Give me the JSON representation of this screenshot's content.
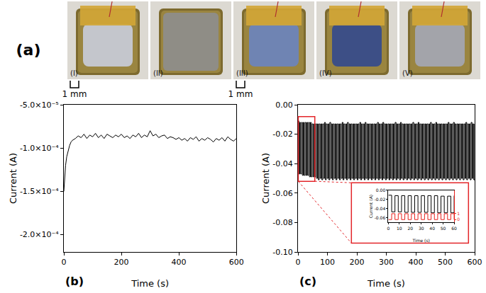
{
  "photos": {
    "label": "(a)",
    "items": [
      "(I)",
      "(II)",
      "(III)",
      "(IV)",
      "(V)"
    ],
    "scale_bar": "1 mm",
    "scale_bar_on": [
      "(I)",
      "(III)"
    ]
  },
  "chart_data": [
    {
      "label": "(b)",
      "type": "line",
      "line_style": "solid",
      "color": "#000000",
      "grid": false,
      "xlabel": "Time (s)",
      "ylabel": "Current (A)",
      "xlim": [
        0,
        600
      ],
      "xticks": [
        0,
        200,
        400,
        600
      ],
      "ylim": [
        -0.00022,
        -5e-05
      ],
      "yticks": [
        {
          "value": -0.0002,
          "label": "-2.0×10⁻⁴"
        },
        {
          "value": -0.00015,
          "label": "-1.5×10⁻⁴"
        },
        {
          "value": -0.0001,
          "label": "-1.0×10⁻⁴"
        },
        {
          "value": -5e-05,
          "label": "-5.0×10⁻⁵"
        }
      ],
      "x": [
        0,
        3,
        6,
        10,
        15,
        20,
        25,
        30,
        40,
        50,
        60,
        70,
        80,
        90,
        100,
        110,
        120,
        130,
        140,
        150,
        160,
        170,
        180,
        190,
        200,
        210,
        220,
        230,
        240,
        250,
        260,
        270,
        280,
        290,
        300,
        310,
        320,
        330,
        340,
        350,
        360,
        370,
        380,
        390,
        400,
        410,
        420,
        430,
        440,
        450,
        460,
        470,
        480,
        490,
        500,
        510,
        520,
        530,
        540,
        550,
        560,
        570,
        580,
        590,
        600
      ],
      "values": [
        -0.00015,
        -0.000132,
        -0.00012,
        -0.00011,
        -0.000102,
        -9.7e-05,
        -9.3e-05,
        -9.1e-05,
        -8.9e-05,
        -8.6e-05,
        -8.8e-05,
        -8.4e-05,
        -8.9e-05,
        -8.5e-05,
        -8.7e-05,
        -8.3e-05,
        -8.8e-05,
        -8.5e-05,
        -8.9e-05,
        -8.4e-05,
        -8.6e-05,
        -8.8e-05,
        -8.5e-05,
        -8.7e-05,
        -8.4e-05,
        -8.8e-05,
        -8.6e-05,
        -8.9e-05,
        -8.5e-05,
        -8.7e-05,
        -8.3e-05,
        -8.8e-05,
        -8.5e-05,
        -8.7e-05,
        -8e-05,
        -8.6e-05,
        -8.4e-05,
        -8.8e-05,
        -8.6e-05,
        -8.5e-05,
        -8.9e-05,
        -8.7e-05,
        -8.8e-05,
        -9e-05,
        -8.8e-05,
        -9.1e-05,
        -8.9e-05,
        -9.2e-05,
        -8.8e-05,
        -9e-05,
        -8.7e-05,
        -9.2e-05,
        -8.9e-05,
        -9.1e-05,
        -8.8e-05,
        -9e-05,
        -9.3e-05,
        -8.9e-05,
        -9.1e-05,
        -8.8e-05,
        -9.2e-05,
        -8.7e-05,
        -9e-05,
        -9.2e-05,
        -8.9e-05
      ]
    },
    {
      "label": "(c)",
      "type": "line",
      "line_style": "step",
      "color": "#000000",
      "grid": false,
      "xlabel": "Time (s)",
      "ylabel": "Current (A)",
      "xlim": [
        0,
        600
      ],
      "xticks": [
        0,
        100,
        200,
        300,
        400,
        500,
        600
      ],
      "ylim": [
        -0.1,
        0
      ],
      "yticks": [
        {
          "value": -0.1,
          "label": "-0.10"
        },
        -0.08,
        -0.06,
        -0.04,
        -0.02,
        {
          "value": 0,
          "label": "0.00"
        }
      ],
      "x": [
        0,
        3,
        6,
        9,
        12,
        15,
        18,
        21,
        24,
        27,
        30,
        33,
        36,
        39,
        42,
        45,
        48,
        51,
        54,
        57,
        60,
        63,
        66,
        69,
        72,
        75,
        78,
        81,
        84,
        87,
        90,
        93,
        96,
        99,
        102,
        105,
        108,
        111,
        114,
        117,
        120,
        123,
        126,
        129,
        132,
        135,
        138,
        141,
        144,
        147,
        150,
        153,
        156,
        159,
        162,
        165,
        168,
        171,
        174,
        177,
        180,
        183,
        186,
        189,
        192,
        195,
        198,
        201,
        204,
        207,
        210,
        213,
        216,
        219,
        222,
        225,
        228,
        231,
        234,
        237,
        240,
        243,
        246,
        249,
        252,
        255,
        258,
        261,
        264,
        267,
        270,
        273,
        276,
        279,
        282,
        285,
        288,
        291,
        294,
        297,
        300,
        303,
        306,
        309,
        312,
        315,
        318,
        321,
        324,
        327,
        330,
        333,
        336,
        339,
        342,
        345,
        348,
        351,
        354,
        357,
        360,
        363,
        366,
        369,
        372,
        375,
        378,
        381,
        384,
        387,
        390,
        393,
        396,
        399,
        402,
        405,
        408,
        411,
        414,
        417,
        420,
        423,
        426,
        429,
        432,
        435,
        438,
        441,
        444,
        447,
        450,
        453,
        456,
        459,
        462,
        465,
        468,
        471,
        474,
        477,
        480,
        483,
        486,
        489,
        492,
        495,
        498,
        501,
        504,
        507,
        510,
        513,
        516,
        519,
        522,
        525,
        528,
        531,
        534,
        537,
        540,
        543,
        546,
        549,
        552,
        555,
        558,
        561,
        564,
        567,
        570,
        573,
        576,
        579,
        582,
        585,
        588,
        591,
        594,
        597,
        600
      ],
      "values": [
        -0.011,
        -0.047,
        -0.012,
        -0.047,
        -0.012,
        -0.048,
        -0.012,
        -0.048,
        -0.012,
        -0.048,
        -0.012,
        -0.048,
        -0.012,
        -0.049,
        -0.012,
        -0.049,
        -0.013,
        -0.049,
        -0.013,
        -0.049,
        -0.013,
        -0.05,
        -0.013,
        -0.051,
        -0.013,
        -0.05,
        -0.013,
        -0.051,
        -0.013,
        -0.05,
        -0.012,
        -0.051,
        -0.013,
        -0.05,
        -0.013,
        -0.051,
        -0.012,
        -0.05,
        -0.013,
        -0.051,
        -0.013,
        -0.05,
        -0.013,
        -0.051,
        -0.013,
        -0.05,
        -0.013,
        -0.051,
        -0.013,
        -0.05,
        -0.012,
        -0.051,
        -0.013,
        -0.05,
        -0.013,
        -0.051,
        -0.012,
        -0.05,
        -0.013,
        -0.051,
        -0.013,
        -0.05,
        -0.013,
        -0.051,
        -0.013,
        -0.05,
        -0.013,
        -0.051,
        -0.013,
        -0.05,
        -0.012,
        -0.051,
        -0.013,
        -0.05,
        -0.013,
        -0.051,
        -0.012,
        -0.05,
        -0.013,
        -0.051,
        -0.013,
        -0.05,
        -0.013,
        -0.051,
        -0.013,
        -0.05,
        -0.013,
        -0.051,
        -0.013,
        -0.05,
        -0.012,
        -0.051,
        -0.013,
        -0.05,
        -0.013,
        -0.051,
        -0.012,
        -0.05,
        -0.013,
        -0.051,
        -0.013,
        -0.05,
        -0.013,
        -0.051,
        -0.013,
        -0.05,
        -0.013,
        -0.051,
        -0.013,
        -0.05,
        -0.012,
        -0.051,
        -0.013,
        -0.05,
        -0.013,
        -0.051,
        -0.012,
        -0.05,
        -0.013,
        -0.051,
        -0.013,
        -0.05,
        -0.013,
        -0.051,
        -0.013,
        -0.05,
        -0.013,
        -0.051,
        -0.013,
        -0.05,
        -0.012,
        -0.051,
        -0.013,
        -0.05,
        -0.013,
        -0.051,
        -0.012,
        -0.05,
        -0.013,
        -0.051,
        -0.013,
        -0.05,
        -0.013,
        -0.051,
        -0.013,
        -0.05,
        -0.013,
        -0.051,
        -0.013,
        -0.05,
        -0.012,
        -0.051,
        -0.013,
        -0.05,
        -0.013,
        -0.051,
        -0.012,
        -0.05,
        -0.013,
        -0.051,
        -0.013,
        -0.05,
        -0.013,
        -0.051,
        -0.013,
        -0.05,
        -0.013,
        -0.051,
        -0.013,
        -0.05,
        -0.012,
        -0.051,
        -0.013,
        -0.05,
        -0.013,
        -0.051,
        -0.012,
        -0.05,
        -0.013,
        -0.051,
        -0.013,
        -0.05,
        -0.013,
        -0.051,
        -0.013,
        -0.05,
        -0.013,
        -0.051,
        -0.013,
        -0.05,
        -0.012,
        -0.051,
        -0.013,
        -0.05,
        -0.013,
        -0.051,
        -0.012,
        -0.05,
        -0.013,
        -0.051,
        -0.013
      ],
      "inset": {
        "type": "line",
        "line_style": "step",
        "grid": false,
        "xlabel": "Time (s)",
        "ylabel": "Current (A)",
        "xlim": [
          0,
          60
        ],
        "xticks": [
          0,
          10,
          20,
          30,
          40,
          50,
          60
        ],
        "ylim": [
          -0.07,
          0
        ],
        "yticks": [
          -0.06,
          -0.04,
          -0.02,
          {
            "value": 0,
            "label": "0.00"
          }
        ],
        "y2lim": [
          -0.5,
          5
        ],
        "y2ticks": [
          0,
          1
        ],
        "x": [
          0,
          3,
          6,
          9,
          12,
          15,
          18,
          21,
          24,
          27,
          30,
          33,
          36,
          39,
          42,
          45,
          48,
          51,
          54,
          57,
          60
        ],
        "series": [
          {
            "color": "#000000",
            "values": [
              -0.011,
              -0.047,
              -0.012,
              -0.047,
              -0.012,
              -0.048,
              -0.012,
              -0.048,
              -0.012,
              -0.048,
              -0.012,
              -0.048,
              -0.012,
              -0.049,
              -0.012,
              -0.049,
              -0.013,
              -0.049,
              -0.013,
              -0.049,
              -0.012
            ]
          },
          {
            "color": "#e8201c",
            "axis": "y2",
            "values": [
              0,
              1,
              0,
              1,
              0,
              1,
              0,
              1,
              0,
              1,
              0,
              1,
              0,
              1,
              0,
              1,
              0,
              1,
              0,
              1,
              0
            ]
          }
        ]
      }
    }
  ]
}
